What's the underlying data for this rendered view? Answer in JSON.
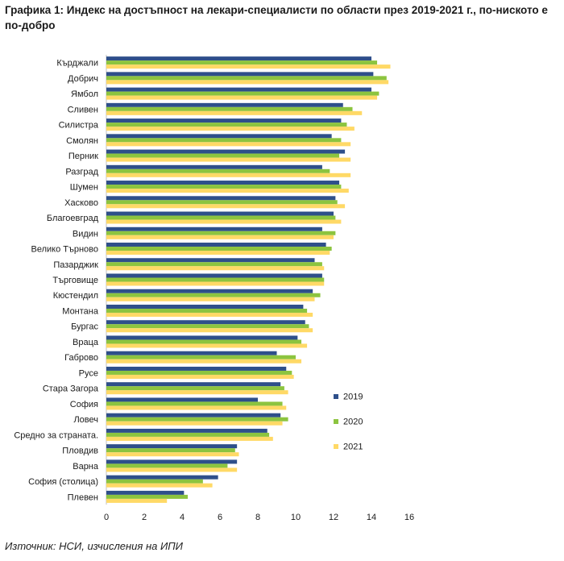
{
  "title": "Графика 1: Индекс на достъпност на лекари-специалисти по области през 2019-2021 г., по-ниското е по-добро",
  "source": "Източник: НСИ, изчисления на ИПИ",
  "chart_data": {
    "type": "bar",
    "orientation": "horizontal",
    "title": "",
    "xlabel": "",
    "ylabel": "",
    "xlim": [
      0,
      16
    ],
    "xticks": [
      "0",
      "2",
      "4",
      "6",
      "8",
      "10",
      "12",
      "14",
      "16"
    ],
    "grid": false,
    "legend_position": "right",
    "categories": [
      "Кърджали",
      "Добрич",
      "Ямбол",
      "Сливен",
      "Силистра",
      "Смолян",
      "Перник",
      "Разград",
      "Шумен",
      "Хасково",
      "Благоевград",
      "Видин",
      "Велико Търново",
      "Пазарджик",
      "Търговище",
      "Кюстендил",
      "Монтана",
      "Бургас",
      "Враца",
      "Габрово",
      "Русе",
      "Стара Загора",
      "София",
      "Ловеч",
      "Средно за страната.",
      "Пловдив",
      "Варна",
      "София (столица)",
      "Плевен"
    ],
    "series": [
      {
        "name": "2019",
        "color": "#2e4f8a",
        "values": [
          14.0,
          14.1,
          14.0,
          12.5,
          12.4,
          11.9,
          12.6,
          11.4,
          12.3,
          12.1,
          12.0,
          11.4,
          11.6,
          11.0,
          11.4,
          10.9,
          10.4,
          10.5,
          10.1,
          9.0,
          9.5,
          9.2,
          8.0,
          9.2,
          8.5,
          6.9,
          6.9,
          5.9,
          4.1
        ]
      },
      {
        "name": "2020",
        "color": "#8cc43f",
        "values": [
          14.3,
          14.8,
          14.4,
          13.0,
          12.7,
          12.4,
          12.3,
          11.8,
          12.4,
          12.2,
          12.1,
          12.1,
          11.9,
          11.4,
          11.5,
          11.3,
          10.6,
          10.7,
          10.3,
          10.0,
          9.8,
          9.4,
          9.3,
          9.6,
          8.6,
          6.8,
          6.4,
          5.1,
          4.3
        ]
      },
      {
        "name": "2021",
        "color": "#ffd966",
        "values": [
          15.0,
          14.9,
          14.3,
          13.5,
          13.1,
          12.9,
          12.9,
          12.9,
          12.8,
          12.6,
          12.4,
          12.0,
          11.8,
          11.5,
          11.5,
          11.0,
          10.9,
          10.9,
          10.6,
          10.3,
          9.9,
          9.6,
          9.5,
          9.3,
          8.8,
          7.0,
          6.9,
          5.6,
          3.2
        ]
      }
    ]
  }
}
